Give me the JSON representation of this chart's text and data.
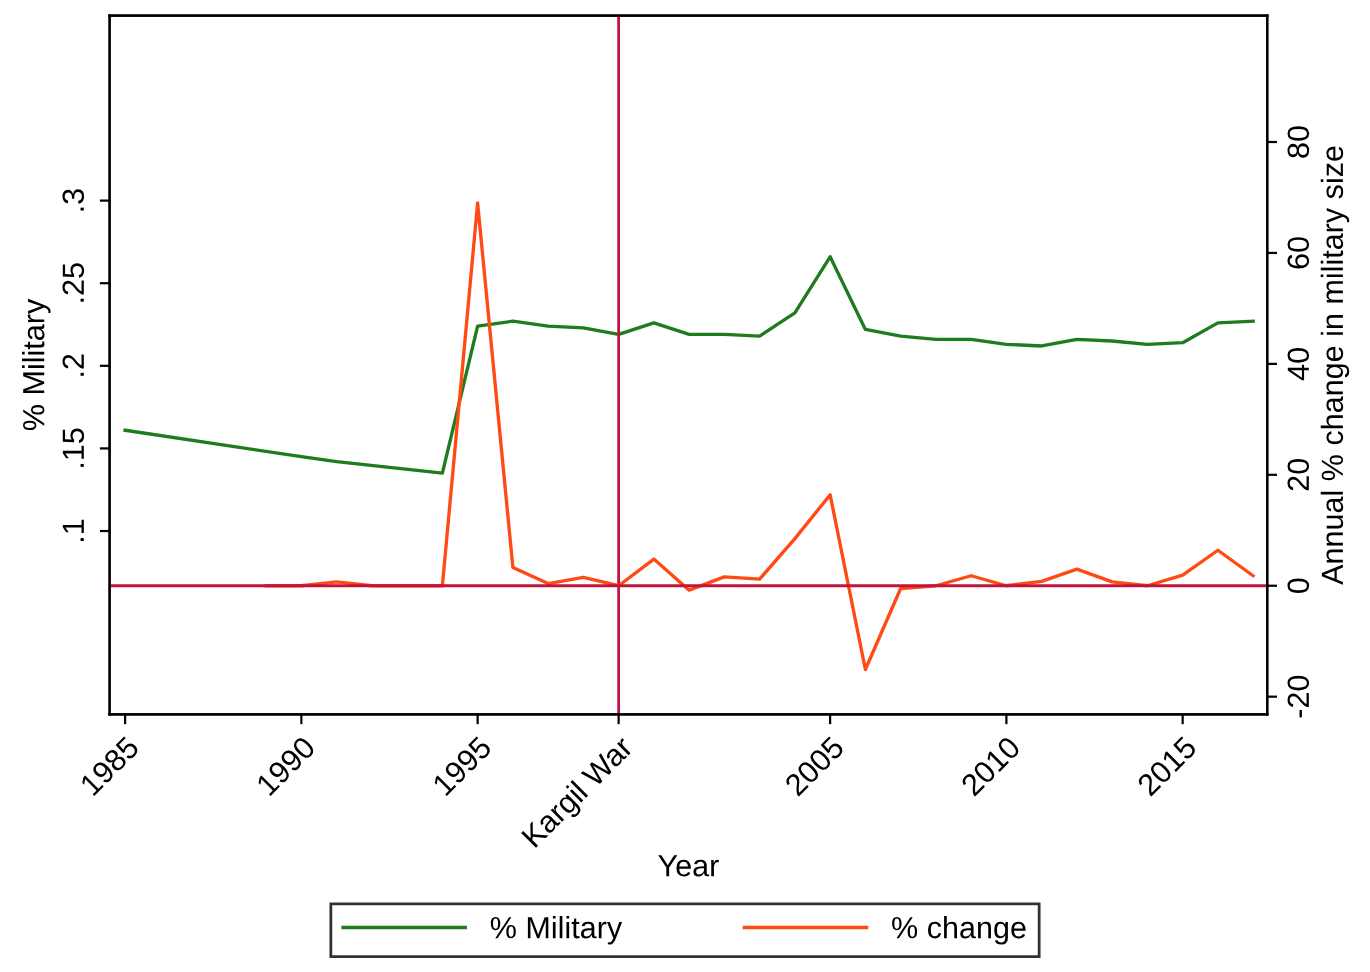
{
  "chart_data": {
    "type": "line",
    "xlabel": "Year",
    "ylabel": "% Military",
    "y2label": "Annual % change in military size",
    "xlim": [
      1984.56,
      2017.4
    ],
    "xticks": [
      1985,
      1990,
      1995,
      {
        "value": 1999,
        "label": "Kargil War"
      },
      2005,
      2010,
      2015
    ],
    "ylim": [
      -0.011,
      0.412
    ],
    "yticks": [
      {
        "value": 0.1,
        "label": ".1"
      },
      {
        "value": 0.15,
        "label": ".15"
      },
      {
        "value": 0.2,
        "label": ".2"
      },
      {
        "value": 0.25,
        "label": ".25"
      },
      {
        "value": 0.3,
        "label": ".3"
      }
    ],
    "y2lim": [
      -23.2,
      102.8
    ],
    "y2ticks": [
      -20,
      0,
      20,
      40,
      60,
      80
    ],
    "series": [
      {
        "name": "% Military",
        "color": "#1e7b1e",
        "x": [
          1985,
          1990,
          1991,
          1994,
          1995,
          1996,
          1997,
          1998,
          1999,
          2000,
          2001,
          2002,
          2003,
          2004,
          2005,
          2006,
          2007,
          2008,
          2009,
          2010,
          2011,
          2012,
          2013,
          2014,
          2015,
          2016,
          2017
        ],
        "values": [
          0.161,
          0.145,
          0.142,
          0.135,
          0.224,
          0.227,
          0.224,
          0.223,
          0.219,
          0.226,
          0.219,
          0.219,
          0.218,
          0.232,
          0.266,
          0.222,
          0.218,
          0.216,
          0.216,
          0.213,
          0.212,
          0.216,
          0.215,
          0.213,
          0.214,
          0.226,
          0.227
        ]
      },
      {
        "name": "% change",
        "color": "#ff4a14",
        "axis": "y2",
        "x": [
          1989,
          1990,
          1991,
          1992,
          1993,
          1994,
          1995,
          1996,
          1997,
          1998,
          1999,
          2000,
          2001,
          2002,
          2003,
          2004,
          2005,
          2006,
          2007,
          2008,
          2009,
          2010,
          2011,
          2012,
          2013,
          2014,
          2015,
          2016,
          2017
        ],
        "values": [
          0,
          0,
          0.7,
          0,
          0,
          0,
          69,
          3.3,
          0.4,
          1.5,
          0,
          4.8,
          -0.8,
          1.6,
          1.2,
          8.5,
          16.4,
          -15.1,
          -0.5,
          0,
          1.8,
          0,
          0.8,
          3,
          0.7,
          0,
          1.9,
          6.4,
          1.8
        ]
      }
    ],
    "ref_lines": [
      {
        "axis": "y2",
        "value": 0,
        "color": "#c0143c"
      },
      {
        "axis": "x",
        "value": 1999,
        "color": "#c0143c"
      }
    ],
    "grid": false,
    "legend": "bottom",
    "marker": "none",
    "line_style": "solid"
  }
}
